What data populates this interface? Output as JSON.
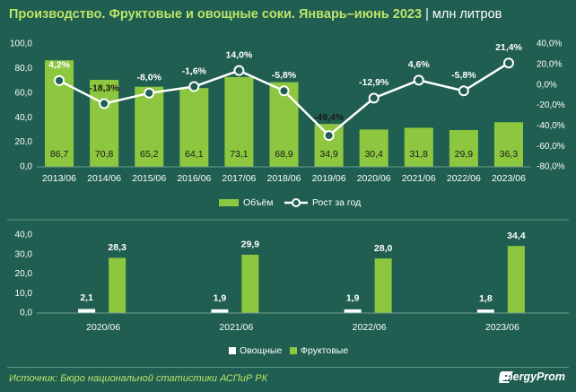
{
  "header": {
    "title": "Производство. Фруктовые и овощные соки. Январь–июнь 2023",
    "separator": "|",
    "unit": "млн литров"
  },
  "colors": {
    "background": "#1f5e50",
    "bar_green": "#8dc63f",
    "bar_white": "#ffffff",
    "title_green": "#bde56a",
    "line": "#ffffff"
  },
  "chart_data": [
    {
      "type": "bar",
      "categories": [
        "2013/06",
        "2014/06",
        "2015/06",
        "2016/06",
        "2017/06",
        "2018/06",
        "2019/06",
        "2020/06",
        "2021/06",
        "2022/06",
        "2023/06"
      ],
      "series": [
        {
          "name": "Объём",
          "type": "bar",
          "axis": "left",
          "values": [
            86.7,
            70.8,
            65.2,
            64.1,
            73.1,
            68.9,
            34.9,
            30.4,
            31.8,
            29.9,
            36.3
          ],
          "labels": [
            "86,7",
            "70,8",
            "65,2",
            "64,1",
            "73,1",
            "68,9",
            "34,9",
            "30,4",
            "31,8",
            "29,9",
            "36,3"
          ]
        },
        {
          "name": "Рост за год",
          "type": "line",
          "axis": "right",
          "values": [
            4.2,
            -18.3,
            -8.0,
            -1.6,
            14.0,
            -5.8,
            -49.4,
            -12.9,
            4.6,
            -5.8,
            21.4
          ],
          "labels": [
            "4,2%",
            "-18,3%",
            "-8,0%",
            "-1,6%",
            "14,0%",
            "-5,8%",
            "-49,4%",
            "-12,9%",
            "4,6%",
            "-5,8%",
            "21,4%"
          ]
        }
      ],
      "ylim": [
        0,
        100
      ],
      "y_ticks": [
        "0,0",
        "20,0",
        "40,0",
        "60,0",
        "80,0",
        "100,0"
      ],
      "y2lim": [
        -80,
        40
      ],
      "y2_ticks": [
        "-80,0%",
        "-60,0%",
        "-40,0%",
        "-20,0%",
        "0,0%",
        "20,0%",
        "40,0%"
      ],
      "legend": [
        "Объём",
        "Рост за год"
      ],
      "legend_position": "bottom"
    },
    {
      "type": "bar",
      "categories": [
        "2020/06",
        "2021/06",
        "2022/06",
        "2023/06"
      ],
      "series": [
        {
          "name": "Овощные",
          "values": [
            2.1,
            1.9,
            1.9,
            1.8
          ],
          "labels": [
            "2,1",
            "1,9",
            "1,9",
            "1,8"
          ]
        },
        {
          "name": "Фруктовые",
          "values": [
            28.3,
            29.9,
            28.0,
            34.4
          ],
          "labels": [
            "28,3",
            "29,9",
            "28,0",
            "34,4"
          ]
        }
      ],
      "ylim": [
        0,
        40
      ],
      "y_ticks": [
        "0,0",
        "10,0",
        "20,0",
        "30,0",
        "40,0"
      ],
      "legend": [
        "Овощные",
        "Фруктовые"
      ],
      "legend_position": "bottom"
    }
  ],
  "footer": {
    "source": "Источник: Бюро национальной статистики АСПиР РК",
    "logo": "EnergyProm",
    "logo_icon": "energyprom-logo-icon"
  }
}
